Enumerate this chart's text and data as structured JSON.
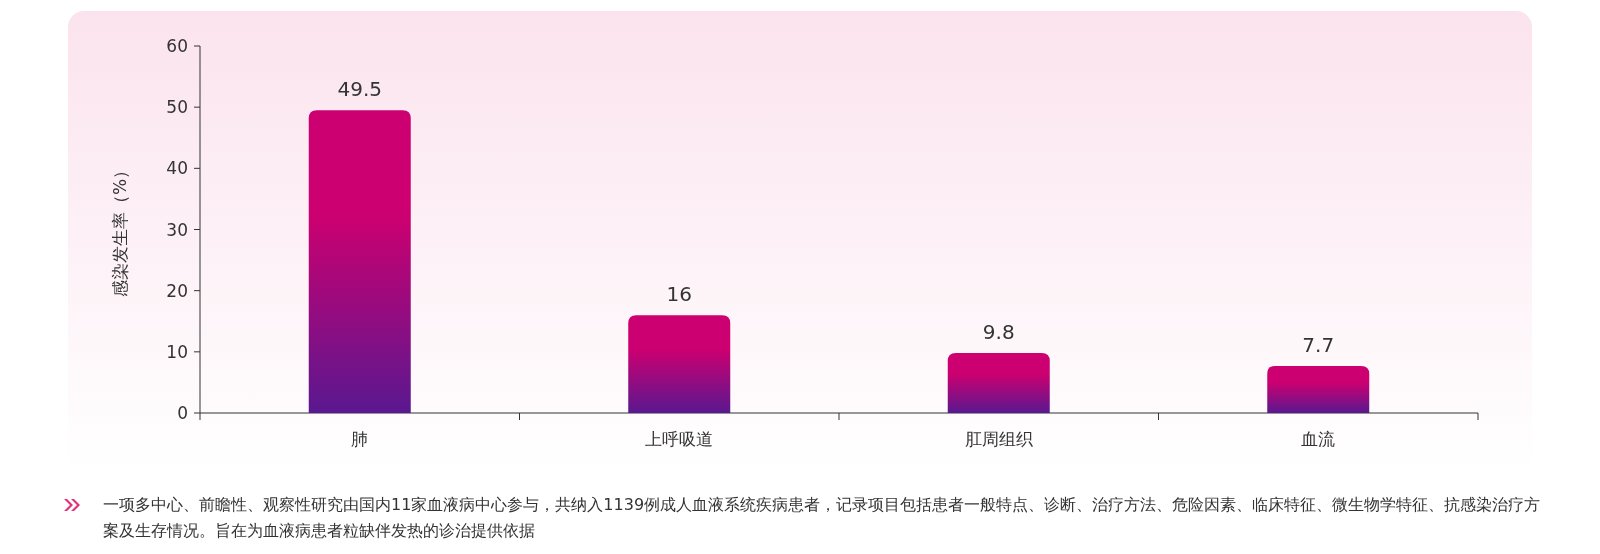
{
  "chart_data": {
    "type": "bar",
    "categories": [
      "肺",
      "上呼吸道",
      "肛周组织",
      "血流"
    ],
    "values": [
      49.5,
      16,
      9.8,
      7.7
    ],
    "color": "#cc0070",
    "ylabel": "感染发生率（%）",
    "ylim": [
      0,
      60
    ],
    "yticks": [
      0,
      10,
      20,
      30,
      40,
      50,
      60
    ],
    "data_labels": true,
    "annotations": [
      "一项多中心、前瞻性、观察性研究由国内11家血液病中心参与，共纳入1139例成人血液系统疾病患者，记录项目包括患者一般特点、诊断、治疗方法、危险因素、临床特征、微生物学特征、抗感染治疗方案及生存情况。旨在为血液病患者粒缺伴发热的诊治提供依据"
    ]
  }
}
